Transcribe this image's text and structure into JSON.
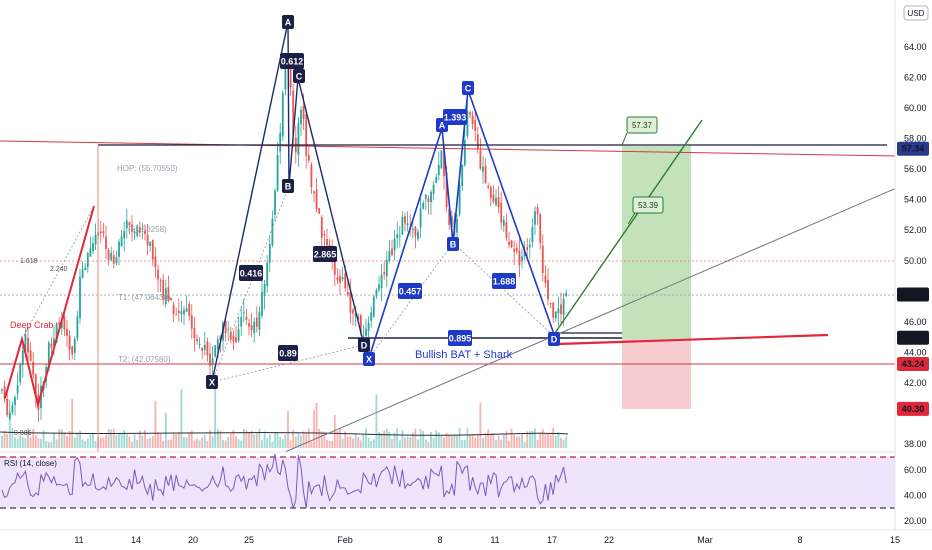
{
  "currency_badge": "USD",
  "price_ticks": [
    {
      "v": 64,
      "label": "64.00"
    },
    {
      "v": 62,
      "label": "62.00"
    },
    {
      "v": 60,
      "label": "60.00"
    },
    {
      "v": 58,
      "label": "58.00"
    },
    {
      "v": 56,
      "label": "56.00"
    },
    {
      "v": 54,
      "label": "54.00"
    },
    {
      "v": 52,
      "label": "52.00"
    },
    {
      "v": 50,
      "label": "50.00"
    },
    {
      "v": 48,
      "label": "48.00"
    },
    {
      "v": 46,
      "label": "46.00"
    },
    {
      "v": 44,
      "label": "44.00"
    },
    {
      "v": 42,
      "label": "42.00"
    },
    {
      "v": 38,
      "label": "38.00"
    }
  ],
  "price_tags": [
    {
      "v": 57.34,
      "label": "57.34",
      "color": "#2a3a8f"
    },
    {
      "v": 47.79,
      "label": "47.79",
      "color": "#131722"
    },
    {
      "v": 44.96,
      "label": "44.96",
      "color": "#131722"
    },
    {
      "v": 43.24,
      "label": "43.24",
      "color": "#e0283a"
    },
    {
      "v": 40.3,
      "label": "40.30",
      "color": "#e0283a"
    }
  ],
  "date_ticks": [
    {
      "x": 79,
      "label": "11"
    },
    {
      "x": 136,
      "label": "14"
    },
    {
      "x": 193,
      "label": "20"
    },
    {
      "x": 249,
      "label": "25"
    },
    {
      "x": 345,
      "label": "Feb"
    },
    {
      "x": 440,
      "label": "8"
    },
    {
      "x": 495,
      "label": "11"
    },
    {
      "x": 552,
      "label": "17"
    },
    {
      "x": 609,
      "label": "22"
    },
    {
      "x": 705,
      "label": "Mar"
    },
    {
      "x": 800,
      "label": "8"
    },
    {
      "x": 895,
      "label": "15"
    }
  ],
  "rsi": {
    "title": "RSI (14, close)",
    "ticks": [
      {
        "v": 60,
        "label": "60.00"
      },
      {
        "v": 40,
        "label": "40.00"
      },
      {
        "v": 20,
        "label": "20.00"
      }
    ],
    "band_high": 70,
    "band_low": 30
  },
  "annotations": {
    "pattern_label": "Bullish BAT  + Shark",
    "target_price": "57.37",
    "mid_price": "53.39",
    "deep_crab": "Deep Crab",
    "hop": "HOP: (55.70550)",
    "t1": "T1: (47.06430)",
    "t2": "T2: (42.07580)",
    "t0": "(51.58258)",
    "fib_1618": "1.618",
    "fib_2240": "2.240",
    "vol_label": "0.886"
  },
  "pattern_points": [
    {
      "id": "X",
      "label": "X"
    },
    {
      "id": "A",
      "label": "A"
    },
    {
      "id": "B",
      "label": "B"
    },
    {
      "id": "C",
      "label": "C"
    },
    {
      "id": "D",
      "label": "D"
    }
  ],
  "ratios": {
    "r1": "0.612",
    "r2": "0.416",
    "r3": "2.865",
    "r4": "0.89",
    "r5": "1.393",
    "r6": "0.457",
    "r7": "1.688",
    "r8": "0.895"
  },
  "chart_data": {
    "type": "candlestick",
    "title": "",
    "ylim": [
      38,
      65.5
    ],
    "series": [
      {
        "name": "price_path",
        "points": [
          {
            "x": "2024-01-22",
            "y": 42.7
          },
          {
            "x": "2024-01-26",
            "y": 64.9
          },
          {
            "x": "2024-01-27",
            "y": 56.0
          },
          {
            "x": "2024-01-28",
            "y": 62.3
          },
          {
            "x": "2024-02-01",
            "y": 45.1
          },
          {
            "x": "2024-02-08",
            "y": 58.0
          },
          {
            "x": "2024-02-09",
            "y": 51.5
          },
          {
            "x": "2024-02-10",
            "y": 60.5
          },
          {
            "x": "2024-02-17",
            "y": 45.3
          },
          {
            "x": "2024-02-18",
            "y": 47.79
          }
        ]
      }
    ],
    "levels": {
      "resistance": 57.34,
      "last": 47.79,
      "entry": 44.96,
      "support": 43.24,
      "stop": 40.3,
      "target": 57.37
    },
    "rsi": {
      "ylim": [
        20,
        80
      ],
      "bands": [
        70,
        30
      ]
    },
    "grid": false,
    "legend": "none"
  }
}
